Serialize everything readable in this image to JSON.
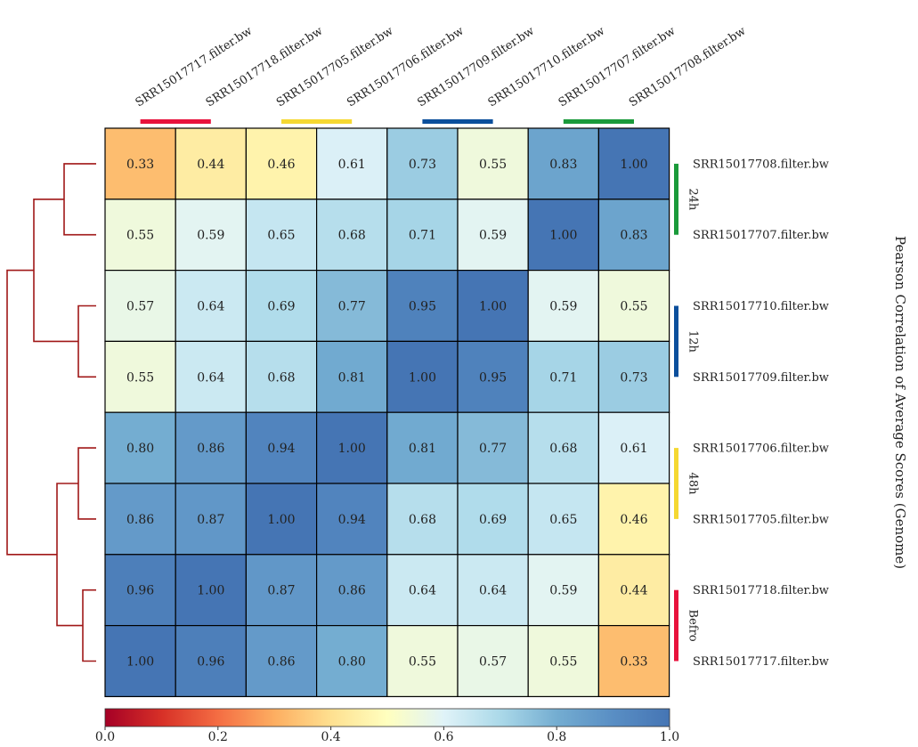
{
  "chart_data": {
    "type": "heatmap",
    "title": "",
    "colorbar": {
      "label": "Pearson Correlation of Average Scores (Genome)",
      "range": [
        0.0,
        1.0
      ],
      "ticks": [
        "0.0",
        "0.2",
        "0.4",
        "0.6",
        "0.8",
        "1.0"
      ],
      "colormap": "RdYlBu"
    },
    "columns": [
      "SRR15017717.filter.bw",
      "SRR15017718.filter.bw",
      "SRR15017705.filter.bw",
      "SRR15017706.filter.bw",
      "SRR15017709.filter.bw",
      "SRR15017710.filter.bw",
      "SRR15017707.filter.bw",
      "SRR15017708.filter.bw"
    ],
    "rows": [
      "SRR15017708.filter.bw",
      "SRR15017707.filter.bw",
      "SRR15017710.filter.bw",
      "SRR15017709.filter.bw",
      "SRR15017706.filter.bw",
      "SRR15017705.filter.bw",
      "SRR15017718.filter.bw",
      "SRR15017717.filter.bw"
    ],
    "values": [
      [
        0.33,
        0.44,
        0.46,
        0.61,
        0.73,
        0.55,
        0.83,
        1.0
      ],
      [
        0.55,
        0.59,
        0.65,
        0.68,
        0.71,
        0.59,
        1.0,
        0.83
      ],
      [
        0.57,
        0.64,
        0.69,
        0.77,
        0.95,
        1.0,
        0.59,
        0.55
      ],
      [
        0.55,
        0.64,
        0.68,
        0.81,
        1.0,
        0.95,
        0.71,
        0.73
      ],
      [
        0.8,
        0.86,
        0.94,
        1.0,
        0.81,
        0.77,
        0.68,
        0.61
      ],
      [
        0.86,
        0.87,
        1.0,
        0.94,
        0.68,
        0.69,
        0.65,
        0.46
      ],
      [
        0.96,
        1.0,
        0.87,
        0.86,
        0.64,
        0.64,
        0.59,
        0.44
      ],
      [
        1.0,
        0.96,
        0.86,
        0.8,
        0.55,
        0.57,
        0.55,
        0.33
      ]
    ],
    "groups": [
      {
        "name": "24h",
        "color": "#1a9a3a",
        "rows": [
          0,
          1
        ],
        "columns": [
          6,
          7
        ]
      },
      {
        "name": "12h",
        "color": "#0b4f9c",
        "rows": [
          2,
          3
        ],
        "columns": [
          4,
          5
        ]
      },
      {
        "name": "48h",
        "color": "#f5d832",
        "rows": [
          4,
          5
        ],
        "columns": [
          2,
          3
        ]
      },
      {
        "name": "Befro",
        "color": "#e8123c",
        "rows": [
          6,
          7
        ],
        "columns": [
          0,
          1
        ]
      }
    ],
    "dendrogram": {
      "color": "#a01818",
      "merges": [
        [
          0,
          1
        ],
        [
          2,
          3
        ],
        [
          4,
          5
        ],
        [
          6,
          7
        ],
        [
          [
            0,
            1
          ],
          [
            2,
            3
          ]
        ],
        [
          [
            4,
            5
          ],
          [
            6,
            7
          ]
        ],
        "all"
      ]
    }
  }
}
